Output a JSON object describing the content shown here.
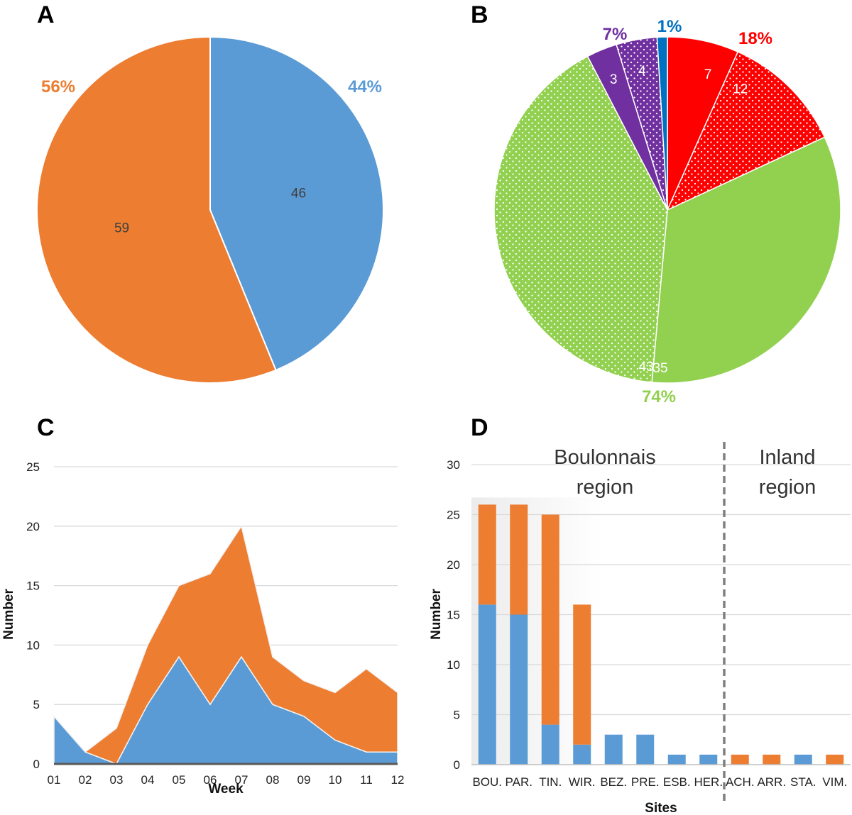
{
  "panels": {
    "a": "A",
    "b": "B",
    "c": "C",
    "d": "D"
  },
  "colors": {
    "blue": "#5b9bd5",
    "orange": "#ed7d31",
    "red": "#ff0000",
    "green": "#92d050",
    "purple": "#7030a0",
    "darkblue": "#0070c0",
    "grid": "#d9d9d9",
    "axis": "#595959"
  },
  "chart_data": [
    {
      "id": "A",
      "type": "pie",
      "start_angle_deg": 0,
      "slices": [
        {
          "name": "blue",
          "value": 46,
          "label": "46",
          "pct": "44%",
          "color": "#5b9bd5"
        },
        {
          "name": "orange",
          "value": 59,
          "label": "59",
          "pct": "56%",
          "color": "#ed7d31"
        }
      ]
    },
    {
      "id": "B",
      "type": "pie",
      "start_angle_deg": 0,
      "slices": [
        {
          "name": "red-solid",
          "value": 7,
          "label": "7",
          "color": "#ff0000",
          "dotted": false
        },
        {
          "name": "red-dotted",
          "value": 12,
          "label": "12",
          "color": "#ff0000",
          "dotted": true
        },
        {
          "name": "green-solid",
          "value": 35,
          "label": "35",
          "color": "#92d050",
          "dotted": false
        },
        {
          "name": "green-dotted",
          "value": 43,
          "label": "43",
          "color": "#92d050",
          "dotted": true
        },
        {
          "name": "purple-solid",
          "value": 3,
          "label": "3",
          "color": "#7030a0",
          "dotted": false
        },
        {
          "name": "purple-dotted",
          "value": 4,
          "label": "4",
          "color": "#7030a0",
          "dotted": true
        },
        {
          "name": "blue-solid",
          "value": 1,
          "label": "",
          "color": "#0070c0",
          "dotted": false
        }
      ],
      "groups": [
        {
          "name": "red",
          "pct": "18%",
          "color": "#ff0000"
        },
        {
          "name": "green",
          "pct": "74%",
          "color": "#92d050"
        },
        {
          "name": "purple",
          "pct": "7%",
          "color": "#7030a0"
        },
        {
          "name": "blue",
          "pct": "1%",
          "color": "#0070c0"
        }
      ]
    },
    {
      "id": "C",
      "type": "area",
      "stacked": true,
      "categories": [
        "01",
        "02",
        "03",
        "04",
        "05",
        "06",
        "07",
        "08",
        "09",
        "10",
        "11",
        "12"
      ],
      "series": [
        {
          "name": "blue",
          "values": [
            4,
            1,
            0,
            5,
            9,
            5,
            9,
            5,
            4,
            2,
            1,
            1
          ],
          "color": "#5b9bd5"
        },
        {
          "name": "orange",
          "values": [
            0,
            0,
            3,
            5,
            6,
            11,
            11,
            4,
            3,
            4,
            7,
            5
          ],
          "color": "#ed7d31"
        }
      ],
      "ylim": [
        0,
        25
      ],
      "yticks": [
        0,
        5,
        10,
        15,
        20,
        25
      ],
      "xlabel": "Week",
      "ylabel": "Number",
      "grid": true
    },
    {
      "id": "D",
      "type": "bar",
      "stacked": true,
      "categories": [
        "BOU.",
        "PAR.",
        "TIN.",
        "WIR.",
        "BEZ.",
        "PRE.",
        "ESB.",
        "HER.",
        "ACH.",
        "ARR.",
        "STA.",
        "VIM."
      ],
      "series": [
        {
          "name": "blue",
          "values": [
            16,
            15,
            4,
            2,
            3,
            3,
            1,
            1,
            0,
            0,
            1,
            0
          ],
          "color": "#5b9bd5"
        },
        {
          "name": "orange",
          "values": [
            10,
            11,
            21,
            14,
            0,
            0,
            0,
            0,
            1,
            1,
            0,
            1
          ],
          "color": "#ed7d31"
        }
      ],
      "ylim": [
        0,
        30
      ],
      "yticks": [
        0,
        5,
        10,
        15,
        20,
        25,
        30
      ],
      "xlabel": "Sites",
      "ylabel": "Number",
      "grid": true,
      "divider_after_index": 7,
      "regions": [
        {
          "lines": [
            "Boulonnais",
            "region"
          ]
        },
        {
          "lines": [
            "Inland",
            "region"
          ]
        }
      ]
    }
  ]
}
